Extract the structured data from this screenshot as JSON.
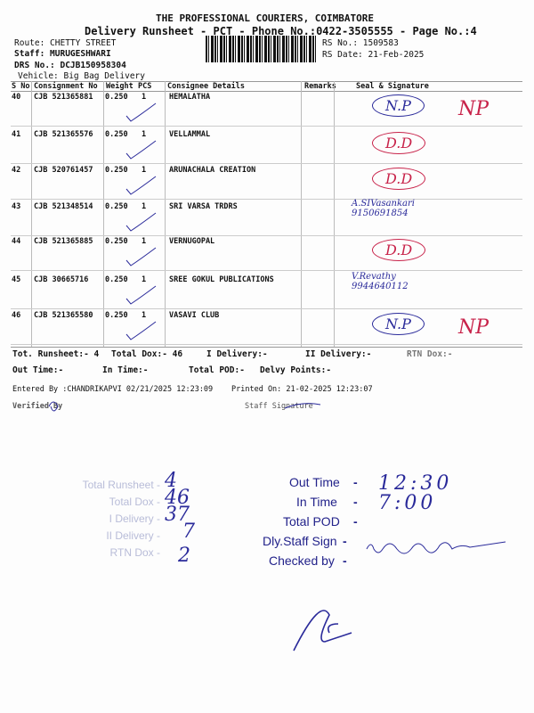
{
  "header": {
    "company": "THE PROFESSIONAL COURIERS, COIMBATORE",
    "subtitle": "Delivery Runsheet - PCT - Phone No.:0422-3505555 - Page No.:4",
    "route": "Route: CHETTY STREET",
    "staff": "Staff: MURUGESHWARI",
    "drs": "DRS No.: DCJB150958304",
    "vehicle": "Vehicle: Big Bag Delivery",
    "rs_no": "RS No.: 1509583",
    "rs_date": "RS Date: 21-Feb-2025"
  },
  "table": {
    "columns": [
      "S No",
      "Consignment No",
      "Weight",
      "PCS",
      "Consignee Details",
      "Remarks",
      "Seal & Signature"
    ],
    "rows": [
      {
        "sno": "40",
        "cn": "CJB 521365881",
        "weight": "0.250",
        "pcs": "1",
        "consignee": "HEMALATHA",
        "seal": "N.P",
        "mark": "NP"
      },
      {
        "sno": "41",
        "cn": "CJB 521365576",
        "weight": "0.250",
        "pcs": "1",
        "consignee": "VELLAMMAL",
        "seal": "D.D",
        "mark": ""
      },
      {
        "sno": "42",
        "cn": "CJB 520761457",
        "weight": "0.250",
        "pcs": "1",
        "consignee": "ARUNACHALA CREATION",
        "seal": "D.D",
        "mark": ""
      },
      {
        "sno": "43",
        "cn": "CJB 521348514",
        "weight": "0.250",
        "pcs": "1",
        "consignee": "SRI VARSA TRDRS",
        "seal": "A.SIVasankari 9150691854",
        "mark": ""
      },
      {
        "sno": "44",
        "cn": "CJB 521365885",
        "weight": "0.250",
        "pcs": "1",
        "consignee": "VERNUGOPAL",
        "seal": "D.D",
        "mark": ""
      },
      {
        "sno": "45",
        "cn": "CJB 30665716",
        "weight": "0.250",
        "pcs": "1",
        "consignee": "SREE GOKUL PUBLICATIONS",
        "seal": "V.Revathy 9944640112",
        "mark": ""
      },
      {
        "sno": "46",
        "cn": "CJB 521365580",
        "weight": "0.250",
        "pcs": "1",
        "consignee": "VASAVI CLUB",
        "seal": "N.P",
        "mark": "NP"
      }
    ]
  },
  "totals": {
    "runsheet": "Tot. Runsheet:- 4",
    "dox": "Total Dox:-  46",
    "i_del": "I Delivery:-",
    "ii_del": "II Delivery:-",
    "rtn": "RTN Dox:-",
    "out": "Out Time:-",
    "in": "In Time:-",
    "pod": "Total POD:-",
    "points": "Delvy Points:-",
    "entered": "Entered By :CHANDRIKAPVI 02/21/2025 12:23:09",
    "printed": "Printed On: 21-02-2025 12:23:07",
    "verified": "Verified By",
    "staff_sig": "Staff Signature"
  },
  "stamp_left": {
    "labels": [
      "Total Runsheet -",
      "Total Dox -",
      "I Delivery -",
      "II Delivery -",
      "RTN Dox -"
    ],
    "values": [
      "4",
      "46",
      "37",
      "7",
      "2"
    ]
  },
  "stamp_right": {
    "labels": [
      "Out Time",
      "In Time",
      "Total POD",
      "Dly.Staff Sign",
      "Checked by"
    ],
    "values": [
      "12:30",
      "7:00",
      "",
      "",
      ""
    ]
  },
  "colors": {
    "ink": "#2a2a9a",
    "red_ink": "#c8234a"
  }
}
